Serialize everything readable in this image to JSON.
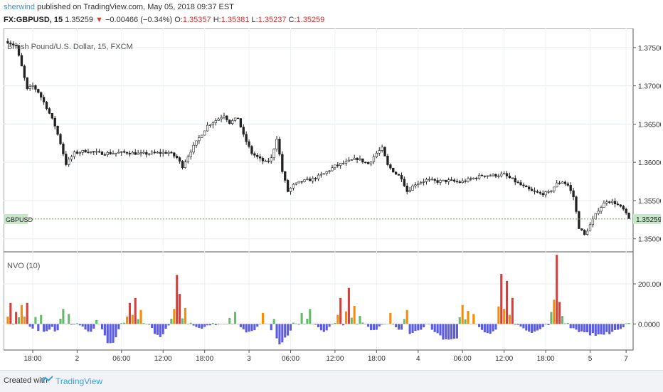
{
  "header": {
    "author": "sherwind",
    "published": "published on TradingView.com, May 05, 2018 09:37 EST",
    "symbol": "FX:GBPUSD, 15",
    "last": "1.35259",
    "change_arrow": "▼",
    "change": "−0.00466 (−0.34%)",
    "o_label": "O:",
    "o": "1.35357",
    "h_label": "H:",
    "h": "1.35381",
    "l_label": "L:",
    "l": "1.35237",
    "c_label": "C:",
    "c": "1.35259"
  },
  "chart_data": [
    {
      "type": "candlestick",
      "title": "British Pound/U.S. Dollar, 15, FXCM",
      "symbol_tag": "GBPUSD",
      "last_price_label": "1.35259",
      "last_price": 1.35259,
      "ylim": [
        1.3483,
        1.3775
      ],
      "yticks": [
        "1.37500",
        "1.37000",
        "1.36500",
        "1.36000",
        "1.35500",
        "1.35000"
      ],
      "ytick_values": [
        1.375,
        1.37,
        1.365,
        1.36,
        1.355,
        1.35
      ],
      "grid": true,
      "colors": {
        "candle": "#222222",
        "last_line": "#4caf50",
        "tag_bg": "#c8e6c9"
      },
      "close_path": [
        [
          0,
          1.3758
        ],
        [
          3,
          1.3752
        ],
        [
          5,
          1.3725
        ],
        [
          7,
          1.3695
        ],
        [
          9,
          1.37
        ],
        [
          11,
          1.3692
        ],
        [
          14,
          1.3672
        ],
        [
          17,
          1.3648
        ],
        [
          19,
          1.3625
        ],
        [
          21,
          1.3598
        ],
        [
          24,
          1.3612
        ],
        [
          28,
          1.3615
        ],
        [
          33,
          1.3612
        ],
        [
          38,
          1.3612
        ],
        [
          43,
          1.3613
        ],
        [
          48,
          1.3611
        ],
        [
          53,
          1.3612
        ],
        [
          58,
          1.3613
        ],
        [
          61,
          1.3606
        ],
        [
          63,
          1.3595
        ],
        [
          66,
          1.3615
        ],
        [
          69,
          1.3632
        ],
        [
          72,
          1.3648
        ],
        [
          75,
          1.3655
        ],
        [
          78,
          1.3662
        ],
        [
          80,
          1.3652
        ],
        [
          83,
          1.3658
        ],
        [
          85,
          1.3635
        ],
        [
          88,
          1.3612
        ],
        [
          91,
          1.3604
        ],
        [
          93,
          1.36
        ],
        [
          95,
          1.3605
        ],
        [
          97,
          1.3632
        ],
        [
          99,
          1.3588
        ],
        [
          101,
          1.3562
        ],
        [
          103,
          1.357
        ],
        [
          106,
          1.3575
        ],
        [
          110,
          1.3578
        ],
        [
          114,
          1.3585
        ],
        [
          118,
          1.3595
        ],
        [
          122,
          1.36
        ],
        [
          126,
          1.3605
        ],
        [
          130,
          1.3598
        ],
        [
          133,
          1.3612
        ],
        [
          135,
          1.3618
        ],
        [
          137,
          1.3596
        ],
        [
          140,
          1.3585
        ],
        [
          142,
          1.358
        ],
        [
          144,
          1.3562
        ],
        [
          147,
          1.3572
        ],
        [
          151,
          1.3577
        ],
        [
          155,
          1.3575
        ],
        [
          159,
          1.3576
        ],
        [
          163,
          1.3574
        ],
        [
          167,
          1.3578
        ],
        [
          171,
          1.3583
        ],
        [
          175,
          1.3583
        ],
        [
          179,
          1.3584
        ],
        [
          183,
          1.3575
        ],
        [
          186,
          1.3568
        ],
        [
          189,
          1.3562
        ],
        [
          192,
          1.3559
        ],
        [
          195,
          1.356
        ],
        [
          198,
          1.3572
        ],
        [
          200,
          1.3575
        ],
        [
          202,
          1.357
        ],
        [
          204,
          1.3555
        ],
        [
          206,
          1.3515
        ],
        [
          208,
          1.3505
        ],
        [
          210,
          1.3518
        ],
        [
          213,
          1.3538
        ],
        [
          216,
          1.355
        ],
        [
          219,
          1.3547
        ],
        [
          222,
          1.3538
        ],
        [
          224,
          1.3526
        ]
      ],
      "xtick_labels": [
        "18:00",
        "2",
        "06:00",
        "12:00",
        "18:00",
        "3",
        "06:00",
        "12:00",
        "18:00",
        "4",
        "06:00",
        "12:00",
        "18:00",
        "5",
        "7"
      ],
      "xtick_bars": [
        9,
        25,
        41,
        56,
        71,
        87,
        102,
        118,
        133,
        148,
        164,
        179,
        194,
        210,
        223
      ],
      "bars": 225
    },
    {
      "type": "bar",
      "title": "NVO (10)",
      "yticks": [
        "200.0000",
        "0.0000"
      ],
      "ytick_values": [
        200,
        0
      ],
      "ylim": [
        -130,
        360
      ],
      "colors": {
        "high": "#e53935",
        "mid": "#fb8c00",
        "low": "#66bb6a",
        "neg": "#5c5ce0"
      },
      "spikes": [
        [
          1,
          105,
          "high"
        ],
        [
          3,
          60,
          "high"
        ],
        [
          5,
          95,
          "mid"
        ],
        [
          7,
          105,
          "high"
        ],
        [
          10,
          35,
          "low"
        ],
        [
          12,
          45,
          "low"
        ],
        [
          20,
          75,
          "low"
        ],
        [
          22,
          50,
          "low"
        ],
        [
          32,
          20,
          "low"
        ],
        [
          44,
          105,
          "high"
        ],
        [
          46,
          130,
          "high"
        ],
        [
          48,
          70,
          "mid"
        ],
        [
          60,
          75,
          "mid"
        ],
        [
          61,
          245,
          "high"
        ],
        [
          62,
          150,
          "high"
        ],
        [
          64,
          80,
          "mid"
        ],
        [
          80,
          30,
          "low"
        ],
        [
          82,
          60,
          "low"
        ],
        [
          92,
          55,
          "mid"
        ],
        [
          96,
          25,
          "low"
        ],
        [
          106,
          55,
          "low"
        ],
        [
          109,
          75,
          "low"
        ],
        [
          120,
          130,
          "high"
        ],
        [
          123,
          180,
          "high"
        ],
        [
          125,
          90,
          "mid"
        ],
        [
          127,
          40,
          "low"
        ],
        [
          138,
          55,
          "mid"
        ],
        [
          144,
          70,
          "mid"
        ],
        [
          164,
          95,
          "mid"
        ],
        [
          166,
          65,
          "mid"
        ],
        [
          168,
          50,
          "mid"
        ],
        [
          178,
          250,
          "high"
        ],
        [
          180,
          215,
          "high"
        ],
        [
          182,
          130,
          "high"
        ],
        [
          196,
          60,
          "low"
        ],
        [
          198,
          345,
          "high"
        ],
        [
          199,
          110,
          "high"
        ],
        [
          200,
          40,
          "low"
        ]
      ],
      "dips": [
        [
          8,
          16,
          -45
        ],
        [
          16,
          19,
          -40
        ],
        [
          27,
          32,
          -40
        ],
        [
          34,
          40,
          -100
        ],
        [
          52,
          57,
          -75
        ],
        [
          67,
          72,
          -25
        ],
        [
          84,
          90,
          -45
        ],
        [
          95,
          102,
          -100
        ],
        [
          112,
          116,
          -50
        ],
        [
          130,
          134,
          -40
        ],
        [
          140,
          150,
          -50
        ],
        [
          153,
          166,
          -85
        ],
        [
          170,
          177,
          -50
        ],
        [
          185,
          193,
          -45
        ],
        [
          203,
          222,
          -60
        ]
      ]
    }
  ],
  "footer": {
    "created_with": "Created with",
    "brand": "TradingView"
  }
}
